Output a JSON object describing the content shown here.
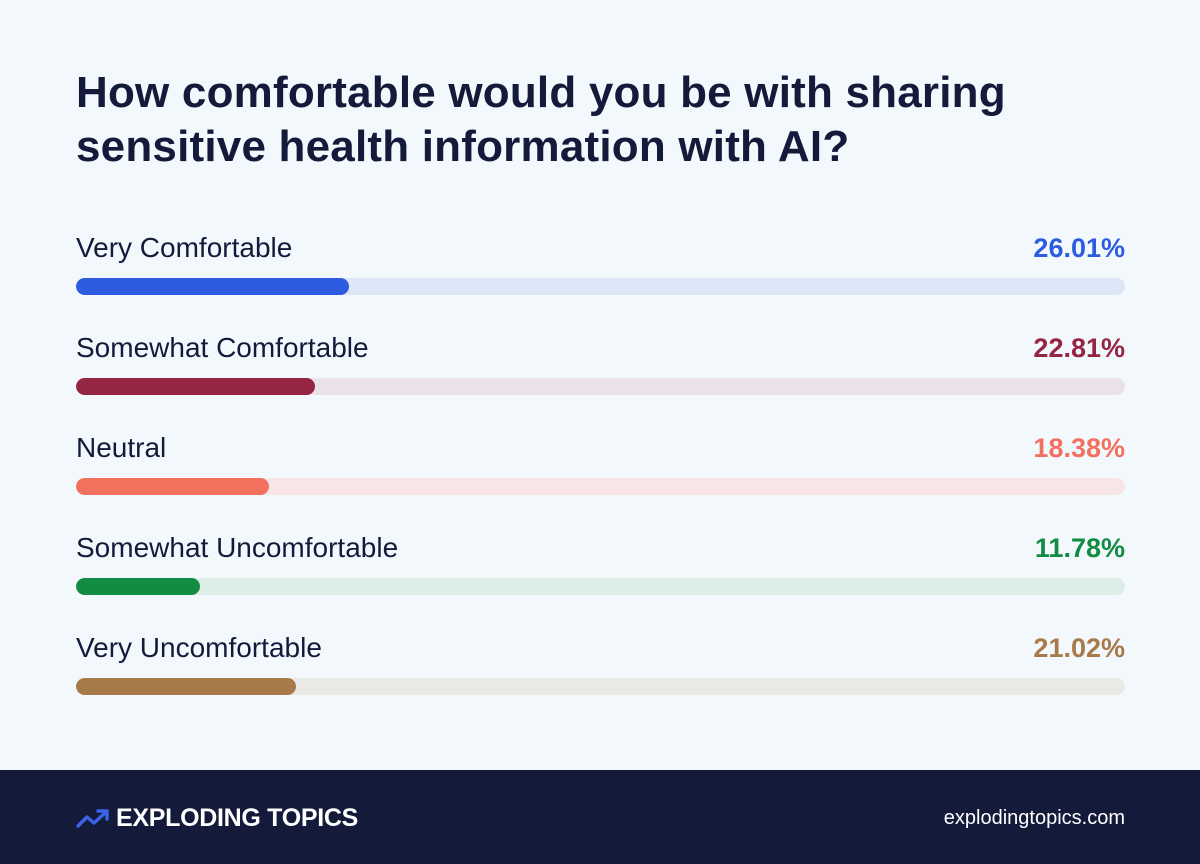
{
  "title_lines": [
    "How comfortable would you be with sharing",
    "sensitive health information with AI?"
  ],
  "chart_data": {
    "type": "bar",
    "orientation": "horizontal",
    "title": "How comfortable would you be with sharing sensitive health information with AI?",
    "categories": [
      "Very Comfortable",
      "Somewhat Comfortable",
      "Neutral",
      "Somewhat Uncomfortable",
      "Very Uncomfortable"
    ],
    "values": [
      26.01,
      22.81,
      18.38,
      11.78,
      21.02
    ],
    "value_labels": [
      "26.01%",
      "22.81%",
      "18.38%",
      "11.78%",
      "21.02%"
    ],
    "colors": [
      "#2e5ce0",
      "#962443",
      "#f2715e",
      "#118c42",
      "#a77a4a"
    ],
    "track_colors": [
      "#dde6f6",
      "#ebe2e9",
      "#f8e6e6",
      "#ddeee9",
      "#e9e9e6"
    ],
    "xlim": [
      0,
      100
    ],
    "grid": false
  },
  "footer": {
    "brand": "EXPLODING TOPICS",
    "logo_icon": "trend-arrow-icon",
    "website": "explodingtopics.com",
    "background": "#141a3a",
    "accent": "#3a63e8"
  }
}
